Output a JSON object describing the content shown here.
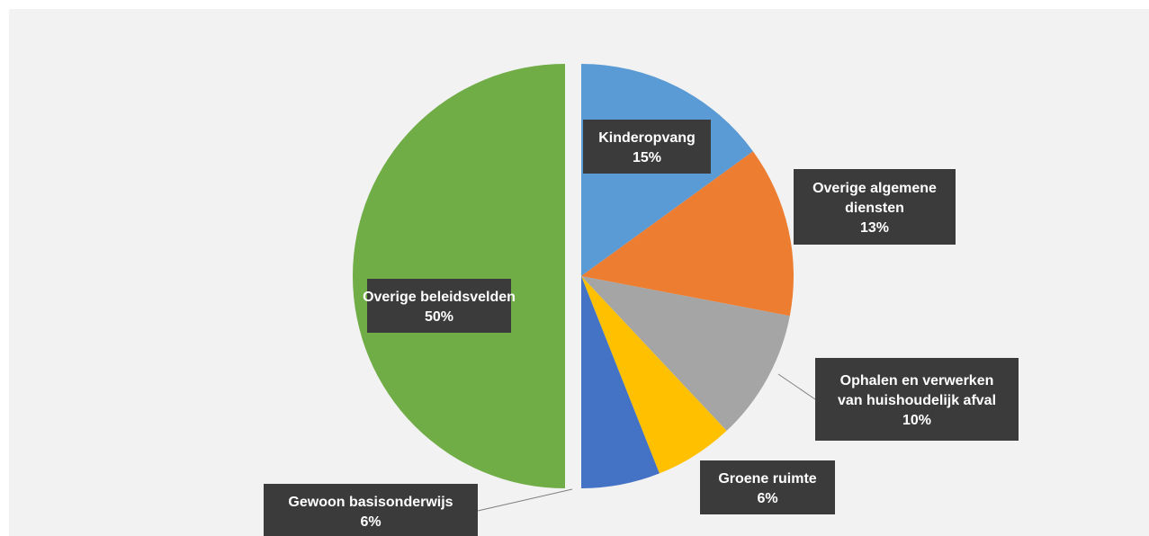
{
  "chart_data": {
    "type": "pie",
    "title": "",
    "legend": "none",
    "slices": [
      {
        "label": "Kinderopvang",
        "percent_label": "15%",
        "value": 15,
        "color": "#5b9bd5"
      },
      {
        "label": "Overige algemene diensten",
        "percent_label": "13%",
        "value": 13,
        "color": "#ed7d31"
      },
      {
        "label": "Ophalen en verwerken van huishoudelijk afval",
        "percent_label": "10%",
        "value": 10,
        "color": "#a5a5a5"
      },
      {
        "label": "Groene ruimte",
        "percent_label": "6%",
        "value": 6,
        "color": "#ffc000"
      },
      {
        "label": "Gewoon basisonderwijs",
        "percent_label": "6%",
        "value": 6,
        "color": "#4472c4"
      },
      {
        "label": "Overige beleidsvelden",
        "percent_label": "50%",
        "value": 50,
        "color": "#70ad47",
        "exploded": true
      }
    ]
  }
}
